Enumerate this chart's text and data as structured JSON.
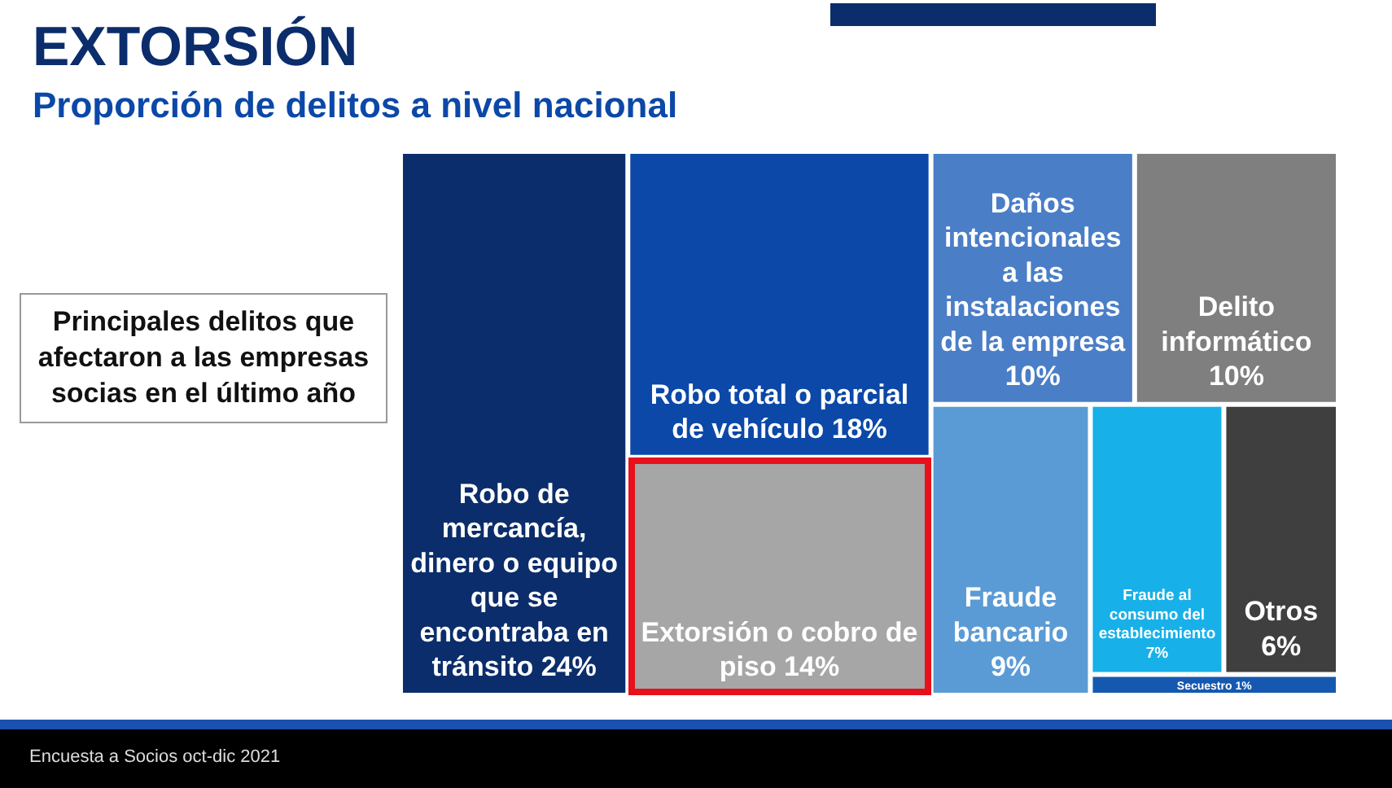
{
  "chart_data": {
    "type": "other",
    "title": "EXTORSIÓN",
    "subtitle": "Proporción de delitos a nivel nacional",
    "categories": [
      "Robo de mercancía, dinero o equipo que se encontraba en tránsito",
      "Robo total o parcial de vehículo",
      "Extorsión o cobro de piso",
      "Daños intencionales a las instalaciones de la empresa",
      "Delito informático",
      "Fraude bancario",
      "Fraude al consumo del establecimiento",
      "Otros",
      "Secuestro"
    ],
    "values": [
      24,
      18,
      14,
      10,
      10,
      9,
      7,
      6,
      1
    ],
    "value_labels": [
      "24%",
      "18%",
      "14%",
      "10%",
      "10%",
      "9%",
      "7%",
      "6%",
      "1%"
    ],
    "colors": [
      "#0b2d6b",
      "#0b48a8",
      "#a6a6a6",
      "#4a7ec7",
      "#7f7f7f",
      "#5b9bd5",
      "#18b0e8",
      "#3f3f3f",
      "#1558b0"
    ],
    "annotations": [
      "Principales delitos que afectaron a las empresas socias en el último año",
      "Encuesta a Socios oct-dic 2021"
    ]
  }
}
